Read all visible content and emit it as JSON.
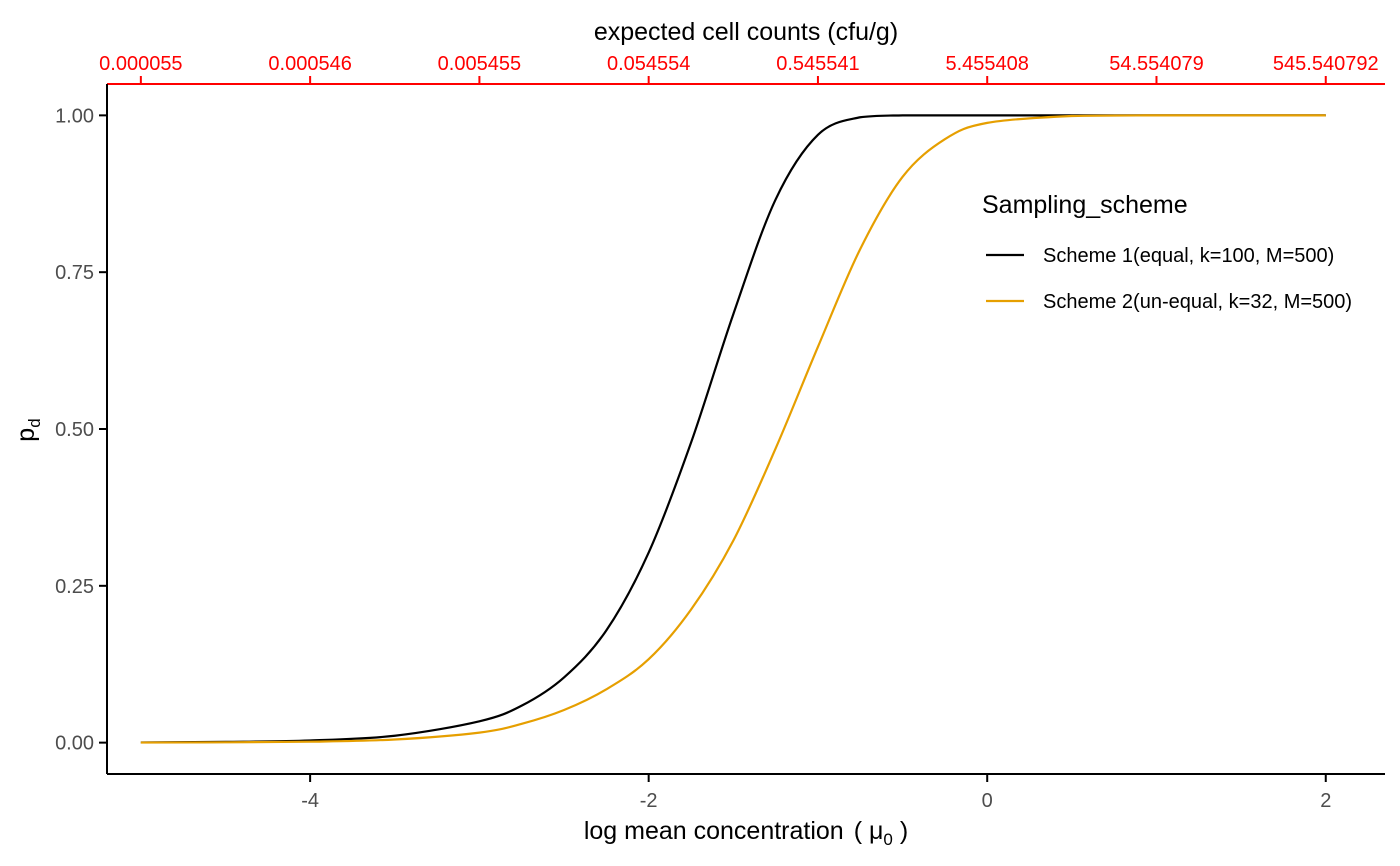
{
  "colors": {
    "top_axis": "#ff0000",
    "axis_line": "#000000",
    "tick_text": "#4d4d4d"
  },
  "chart_data": {
    "type": "line",
    "xlabel": "log mean concentration",
    "xlabel_symbol": "μ",
    "xlabel_subscript": "0",
    "ylabel": "p",
    "ylabel_subscript": "d",
    "xlim": [
      -5.2,
      2.35
    ],
    "ylim": [
      -0.05,
      1.05
    ],
    "x_ticks": [
      -4,
      -2,
      0,
      2
    ],
    "x_tick_labels": [
      "-4",
      "-2",
      "0",
      "2"
    ],
    "y_ticks": [
      0,
      0.25,
      0.5,
      0.75,
      1
    ],
    "y_tick_labels": [
      "0.00",
      "0.25",
      "0.50",
      "0.75",
      "1.00"
    ],
    "top_axis": {
      "title": "expected cell counts (cfu/g)",
      "ticks": [
        -5,
        -4,
        -3,
        -2,
        -1,
        0,
        1,
        2
      ],
      "tick_labels": [
        "0.000055",
        "0.000546",
        "0.005455",
        "0.054554",
        "0.545541",
        "5.455408",
        "54.554079",
        "545.540792"
      ]
    },
    "grid": false,
    "legend": {
      "title": "Sampling_scheme",
      "placement": "right"
    },
    "series": [
      {
        "name": "Scheme 1(equal, k=100, M=500)",
        "color": "#000000",
        "x": [
          -5.0,
          -4.5,
          -4.0,
          -3.5,
          -3.0,
          -2.75,
          -2.5,
          -2.25,
          -2.0,
          -1.75,
          -1.5,
          -1.25,
          -1.0,
          -0.75,
          -0.5,
          -0.25,
          0.0,
          0.5,
          1.0,
          1.5,
          2.0
        ],
        "y": [
          0.0003,
          0.0012,
          0.0035,
          0.011,
          0.034,
          0.059,
          0.104,
          0.179,
          0.303,
          0.478,
          0.683,
          0.866,
          0.969,
          0.997,
          1.0,
          1.0,
          1.0,
          1.0,
          1.0,
          1.0,
          1.0
        ]
      },
      {
        "name": "Scheme 2(un-equal, k=32, M=500)",
        "color": "#e69f00",
        "x": [
          -5.0,
          -4.5,
          -4.0,
          -3.5,
          -3.0,
          -2.75,
          -2.5,
          -2.25,
          -2.0,
          -1.75,
          -1.5,
          -1.25,
          -1.0,
          -0.75,
          -0.5,
          -0.25,
          0.0,
          0.5,
          1.0,
          1.5,
          2.0
        ],
        "y": [
          0.0001,
          0.0005,
          0.0015,
          0.005,
          0.016,
          0.03,
          0.052,
          0.085,
          0.133,
          0.212,
          0.322,
          0.469,
          0.631,
          0.787,
          0.902,
          0.962,
          0.988,
          0.999,
          1.0,
          1.0,
          1.0
        ]
      }
    ]
  }
}
